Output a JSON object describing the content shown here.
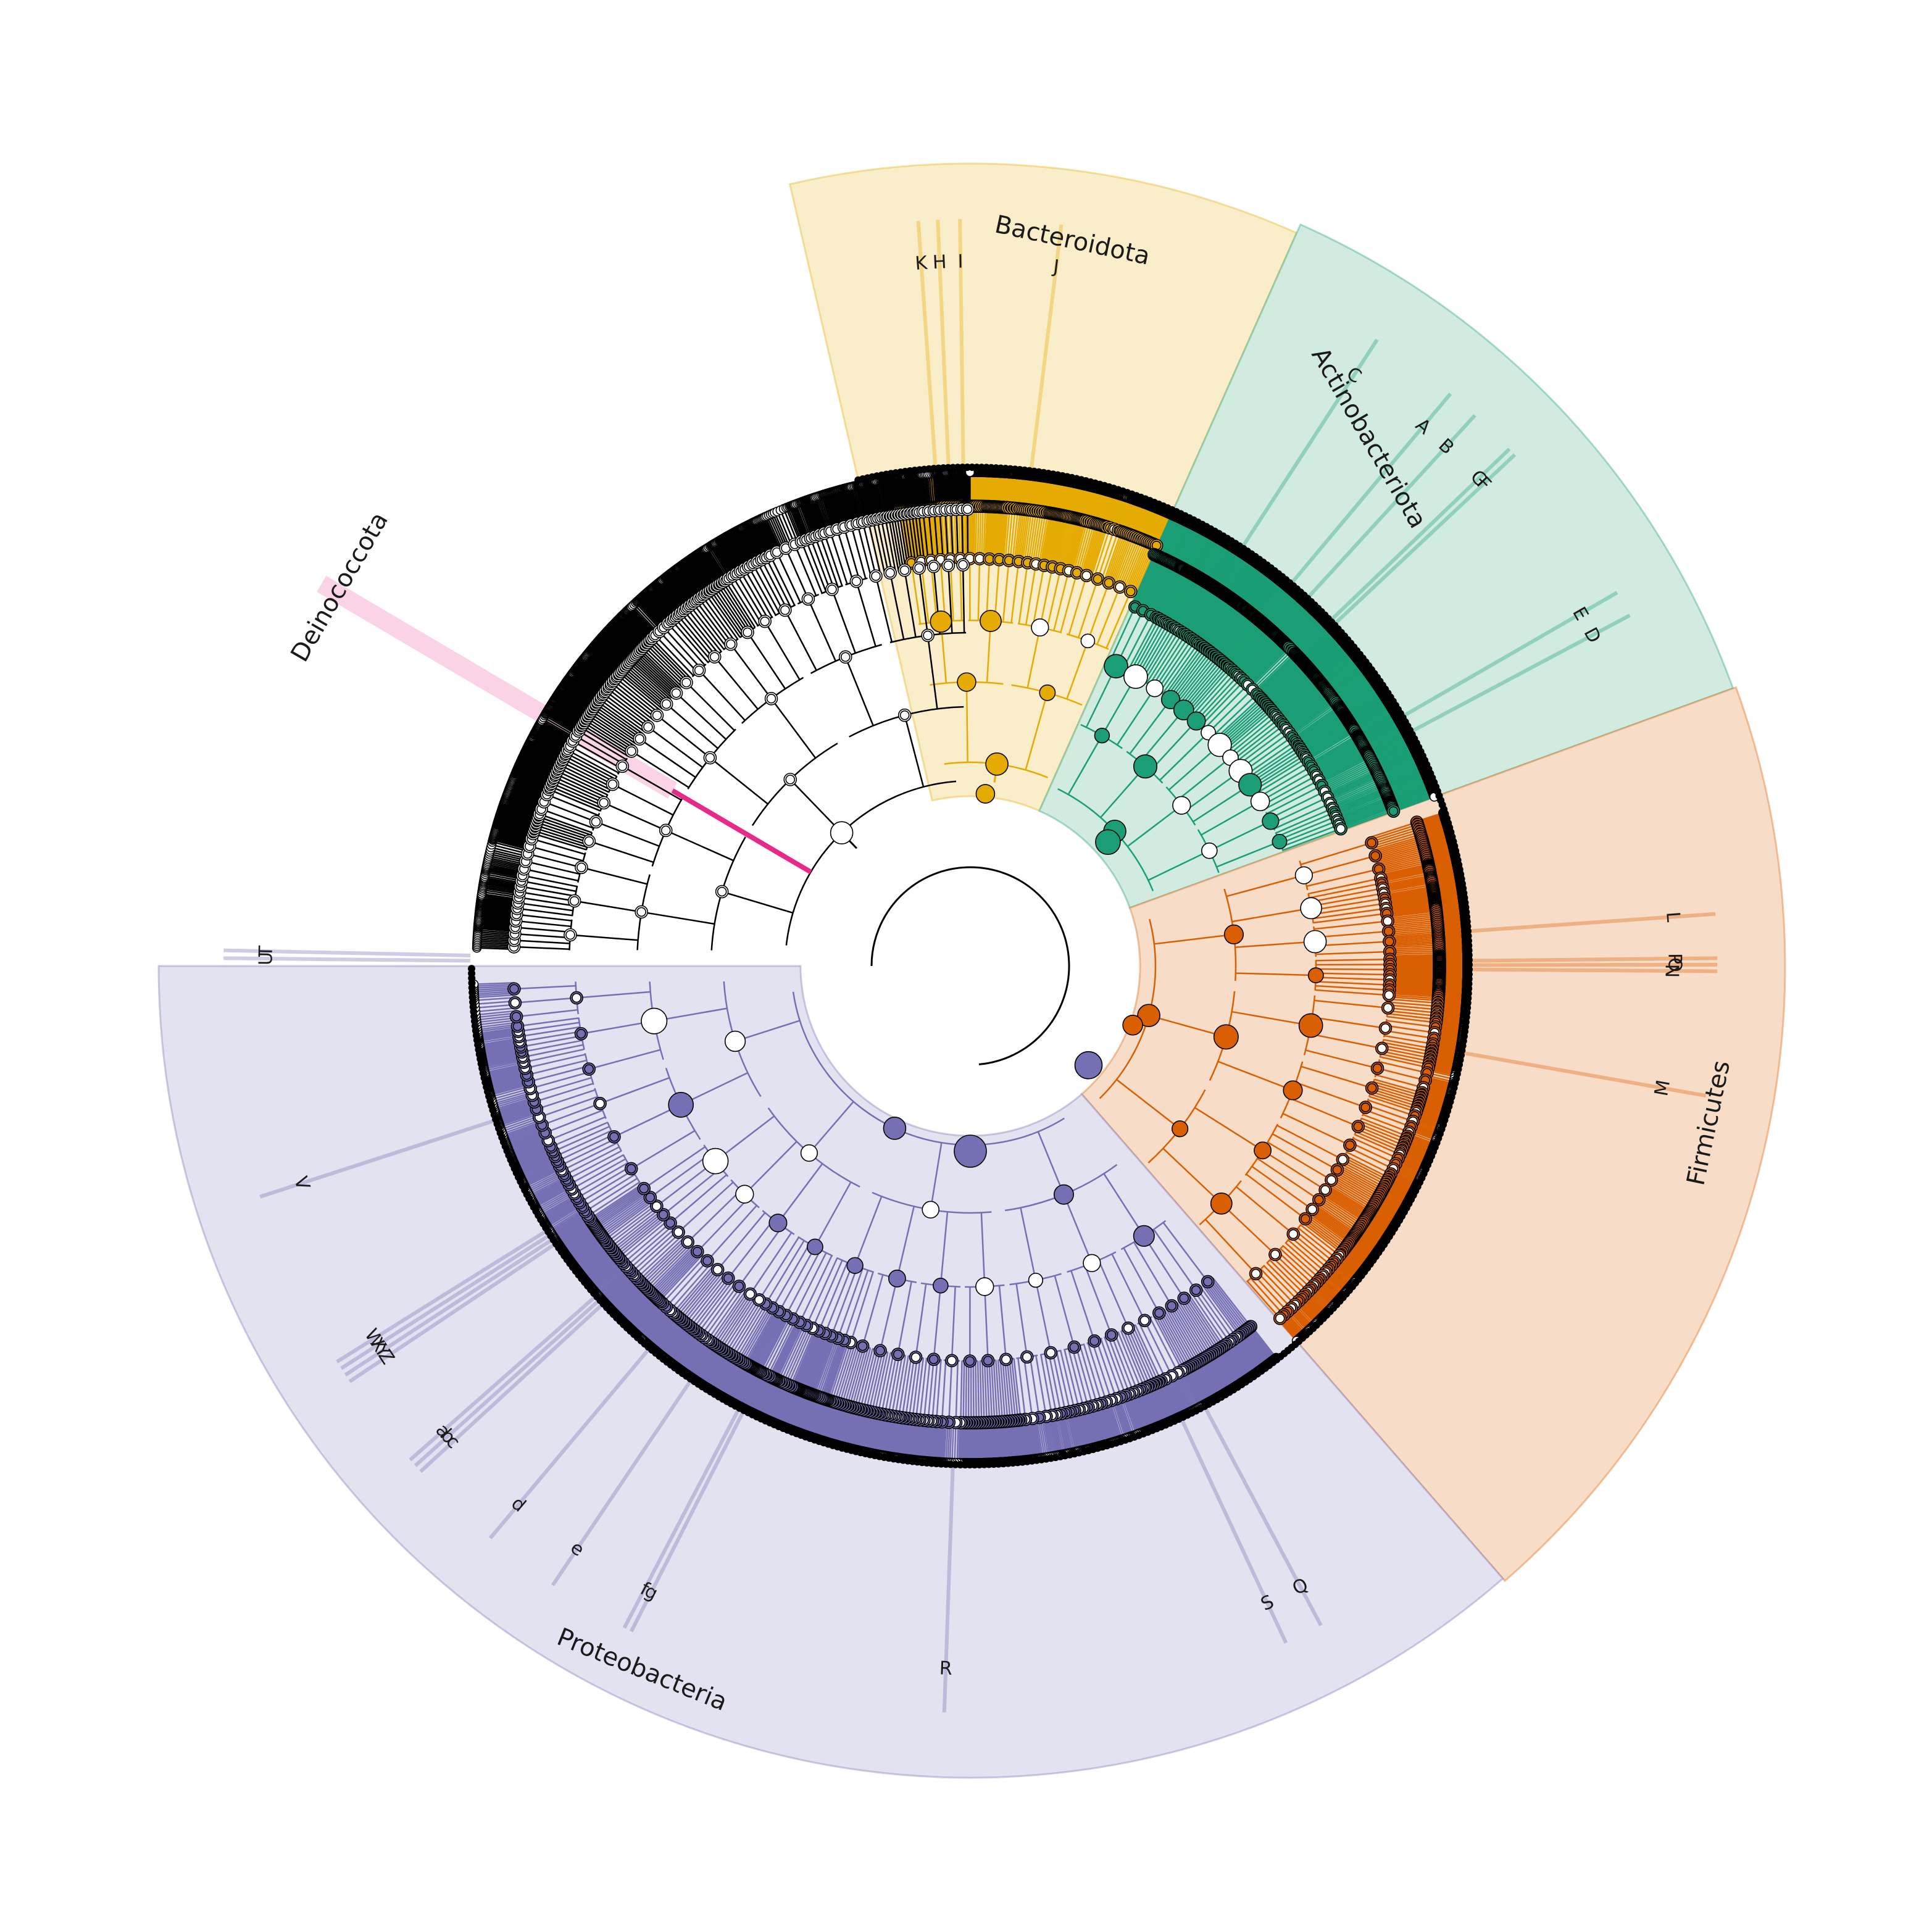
{
  "diagram": {
    "type": "circular-cladogram",
    "center_color": "#ffffff",
    "node_outline": "#000000",
    "node_fill_default": "#ffffff",
    "clades": [
      {
        "name": "Bacteroidota",
        "color": "#e6ab02",
        "shade": "#faedca",
        "sector": [
          -13,
          24
        ]
      },
      {
        "name": "Actinobacteriota",
        "color": "#1b9e77",
        "shade": "#d1ebe1",
        "sector": [
          24,
          70
        ]
      },
      {
        "name": "Firmicutes",
        "color": "#d95f02",
        "shade": "#f7ddc8",
        "sector": [
          70,
          139
        ]
      },
      {
        "name": "Proteobacteria",
        "color": "#7570b3",
        "shade": "#e3e2f0",
        "sector": [
          139,
          270
        ]
      },
      {
        "name": "Deinococcota",
        "color": "#e7298a",
        "shade": "#fbd3e6",
        "sector": [
          300,
          303
        ]
      }
    ],
    "leaf_labels": [
      {
        "text": "K",
        "clade": "Bacteroidota"
      },
      {
        "text": "H",
        "clade": "Bacteroidota"
      },
      {
        "text": "I",
        "clade": "Bacteroidota"
      },
      {
        "text": "J",
        "clade": "Bacteroidota"
      },
      {
        "text": "C",
        "clade": "Actinobacteriota"
      },
      {
        "text": "A",
        "clade": "Actinobacteriota"
      },
      {
        "text": "B",
        "clade": "Actinobacteriota"
      },
      {
        "text": "G",
        "clade": "Actinobacteriota"
      },
      {
        "text": "F",
        "clade": "Actinobacteriota"
      },
      {
        "text": "E",
        "clade": "Actinobacteriota"
      },
      {
        "text": "D",
        "clade": "Actinobacteriota"
      },
      {
        "text": "L",
        "clade": "Firmicutes"
      },
      {
        "text": "P",
        "clade": "Firmicutes"
      },
      {
        "text": "O",
        "clade": "Firmicutes"
      },
      {
        "text": "N",
        "clade": "Firmicutes"
      },
      {
        "text": "M",
        "clade": "Firmicutes"
      },
      {
        "text": "Q",
        "clade": "Proteobacteria"
      },
      {
        "text": "S",
        "clade": "Proteobacteria"
      },
      {
        "text": "R",
        "clade": "Proteobacteria"
      },
      {
        "text": "g",
        "clade": "Proteobacteria"
      },
      {
        "text": "f",
        "clade": "Proteobacteria"
      },
      {
        "text": "e",
        "clade": "Proteobacteria"
      },
      {
        "text": "d",
        "clade": "Proteobacteria"
      },
      {
        "text": "c",
        "clade": "Proteobacteria"
      },
      {
        "text": "b",
        "clade": "Proteobacteria"
      },
      {
        "text": "a",
        "clade": "Proteobacteria"
      },
      {
        "text": "Z",
        "clade": "Proteobacteria"
      },
      {
        "text": "Y",
        "clade": "Proteobacteria"
      },
      {
        "text": "X",
        "clade": "Proteobacteria"
      },
      {
        "text": "W",
        "clade": "Proteobacteria"
      },
      {
        "text": "V",
        "clade": "Proteobacteria"
      },
      {
        "text": "U",
        "clade": "Proteobacteria"
      },
      {
        "text": "T",
        "clade": "Proteobacteria"
      }
    ]
  }
}
